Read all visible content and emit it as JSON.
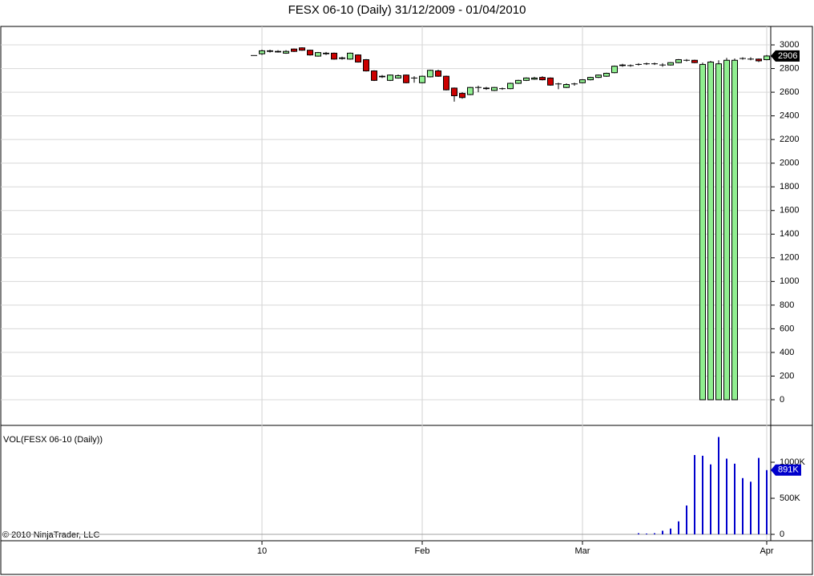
{
  "chart_data": [
    {
      "type": "candlestick",
      "title": "FESX 06-10 (Daily)  31/12/2009 - 01/04/2010",
      "categories": [
        null,
        "10",
        null,
        null,
        null,
        null,
        null,
        null,
        null,
        null,
        null,
        null,
        null,
        null,
        null,
        null,
        null,
        null,
        null,
        null,
        null,
        "Feb",
        null,
        null,
        null,
        null,
        null,
        null,
        null,
        null,
        null,
        null,
        null,
        null,
        null,
        null,
        null,
        null,
        null,
        null,
        null,
        "Mar",
        null,
        null,
        null,
        null,
        null,
        null,
        null,
        null,
        null,
        null,
        null,
        null,
        null,
        null,
        null,
        null,
        null,
        null,
        null,
        null,
        null,
        null,
        "Apr"
      ],
      "open": [
        2910,
        2925,
        2950,
        2945,
        2930,
        2965,
        2975,
        2955,
        2905,
        2930,
        2930,
        2890,
        2880,
        2915,
        2875,
        2780,
        2735,
        2700,
        2720,
        2745,
        2720,
        2680,
        2730,
        2780,
        2735,
        2635,
        2590,
        2580,
        2640,
        2635,
        2615,
        2630,
        2630,
        2675,
        2700,
        2710,
        2725,
        2720,
        2670,
        2640,
        2670,
        2680,
        2705,
        2725,
        2735,
        2765,
        2825,
        2825,
        2835,
        2840,
        2840,
        2830,
        2830,
        2850,
        2870,
        2870,
        0,
        0,
        0,
        0,
        0,
        2885,
        2880,
        2880,
        2875
      ],
      "high": [
        2910,
        2960,
        2960,
        2955,
        2955,
        2970,
        2980,
        2960,
        2940,
        2940,
        2935,
        2900,
        2935,
        2920,
        2880,
        2785,
        2745,
        2750,
        2750,
        2750,
        2735,
        2740,
        2790,
        2790,
        2740,
        2640,
        2600,
        2645,
        2655,
        2645,
        2645,
        2640,
        2680,
        2705,
        2725,
        2730,
        2735,
        2725,
        2680,
        2675,
        2680,
        2710,
        2730,
        2750,
        2765,
        2825,
        2840,
        2835,
        2845,
        2850,
        2850,
        2845,
        2855,
        2880,
        2880,
        2875,
        2850,
        2865,
        2870,
        2890,
        2885,
        2895,
        2895,
        2885,
        2915
      ],
      "low": [
        2910,
        2915,
        2935,
        2935,
        2925,
        2940,
        2950,
        2910,
        2900,
        2915,
        2875,
        2875,
        2875,
        2850,
        2775,
        2695,
        2720,
        2695,
        2715,
        2675,
        2680,
        2675,
        2725,
        2730,
        2615,
        2520,
        2545,
        2575,
        2600,
        2620,
        2610,
        2620,
        2625,
        2670,
        2695,
        2705,
        2700,
        2655,
        2625,
        2635,
        2655,
        2675,
        2700,
        2720,
        2730,
        2760,
        2815,
        2815,
        2825,
        2830,
        2830,
        2815,
        2825,
        2845,
        2860,
        2845,
        0,
        0,
        0,
        0,
        0,
        2875,
        2870,
        2855,
        2870
      ],
      "close": [
        2910,
        2950,
        2945,
        2940,
        2945,
        2945,
        2955,
        2915,
        2935,
        2925,
        2880,
        2885,
        2930,
        2855,
        2780,
        2700,
        2730,
        2745,
        2740,
        2680,
        2720,
        2735,
        2785,
        2735,
        2620,
        2570,
        2555,
        2640,
        2640,
        2630,
        2640,
        2630,
        2675,
        2700,
        2720,
        2720,
        2705,
        2660,
        2670,
        2665,
        2670,
        2705,
        2725,
        2745,
        2760,
        2820,
        2830,
        2825,
        2835,
        2840,
        2840,
        2830,
        2850,
        2875,
        2870,
        2850,
        2835,
        2855,
        2840,
        2870,
        2870,
        2885,
        2880,
        2865,
        2906
      ],
      "up_color": "#90ee90",
      "down_color": "#cc0000",
      "ylim": [
        -210,
        3156
      ],
      "yticks": [
        0,
        200,
        400,
        600,
        800,
        1000,
        1200,
        1400,
        1600,
        1800,
        2000,
        2200,
        2400,
        2600,
        2800,
        3000
      ],
      "grid": true
    },
    {
      "type": "bar",
      "title": "VOL(FESX 06-10 (Daily))",
      "annotation": "© 2010 NinjaTrader, LLC",
      "values": [
        0,
        0,
        0,
        0,
        0,
        0,
        0,
        0,
        0,
        0,
        0,
        0,
        0,
        0,
        0,
        0,
        0,
        0,
        0,
        0,
        0,
        0,
        0,
        0,
        0,
        0,
        0,
        0,
        0,
        0,
        0,
        0,
        0,
        0,
        0,
        0,
        0,
        0,
        0,
        0,
        0,
        0,
        0,
        0,
        0,
        0,
        0,
        0,
        15000,
        10000,
        15000,
        50000,
        80000,
        180000,
        400000,
        1100000,
        1090000,
        970000,
        1350000,
        1050000,
        980000,
        780000,
        730000,
        1060000,
        891000
      ],
      "value_labels": [
        null,
        null,
        null,
        null,
        null,
        null,
        null,
        null,
        null,
        null,
        null,
        null,
        null,
        null,
        null,
        null,
        null,
        null,
        null,
        null,
        null,
        null,
        null,
        null,
        null,
        null,
        null,
        null,
        null,
        null,
        null,
        null,
        null,
        null,
        null,
        null,
        null,
        null,
        null,
        null,
        null,
        null,
        null,
        null,
        null,
        null,
        null,
        null,
        null,
        null,
        null,
        null,
        null,
        null,
        null,
        null,
        null,
        null,
        null,
        null,
        null,
        null,
        null,
        null,
        "891K"
      ],
      "color": "#0000cc",
      "ylim": [
        -89000,
        1500000
      ],
      "yticks": [
        0,
        {
          "value": 500000,
          "label": "500K"
        },
        {
          "value": 1000000,
          "label": "1000K"
        }
      ]
    }
  ]
}
